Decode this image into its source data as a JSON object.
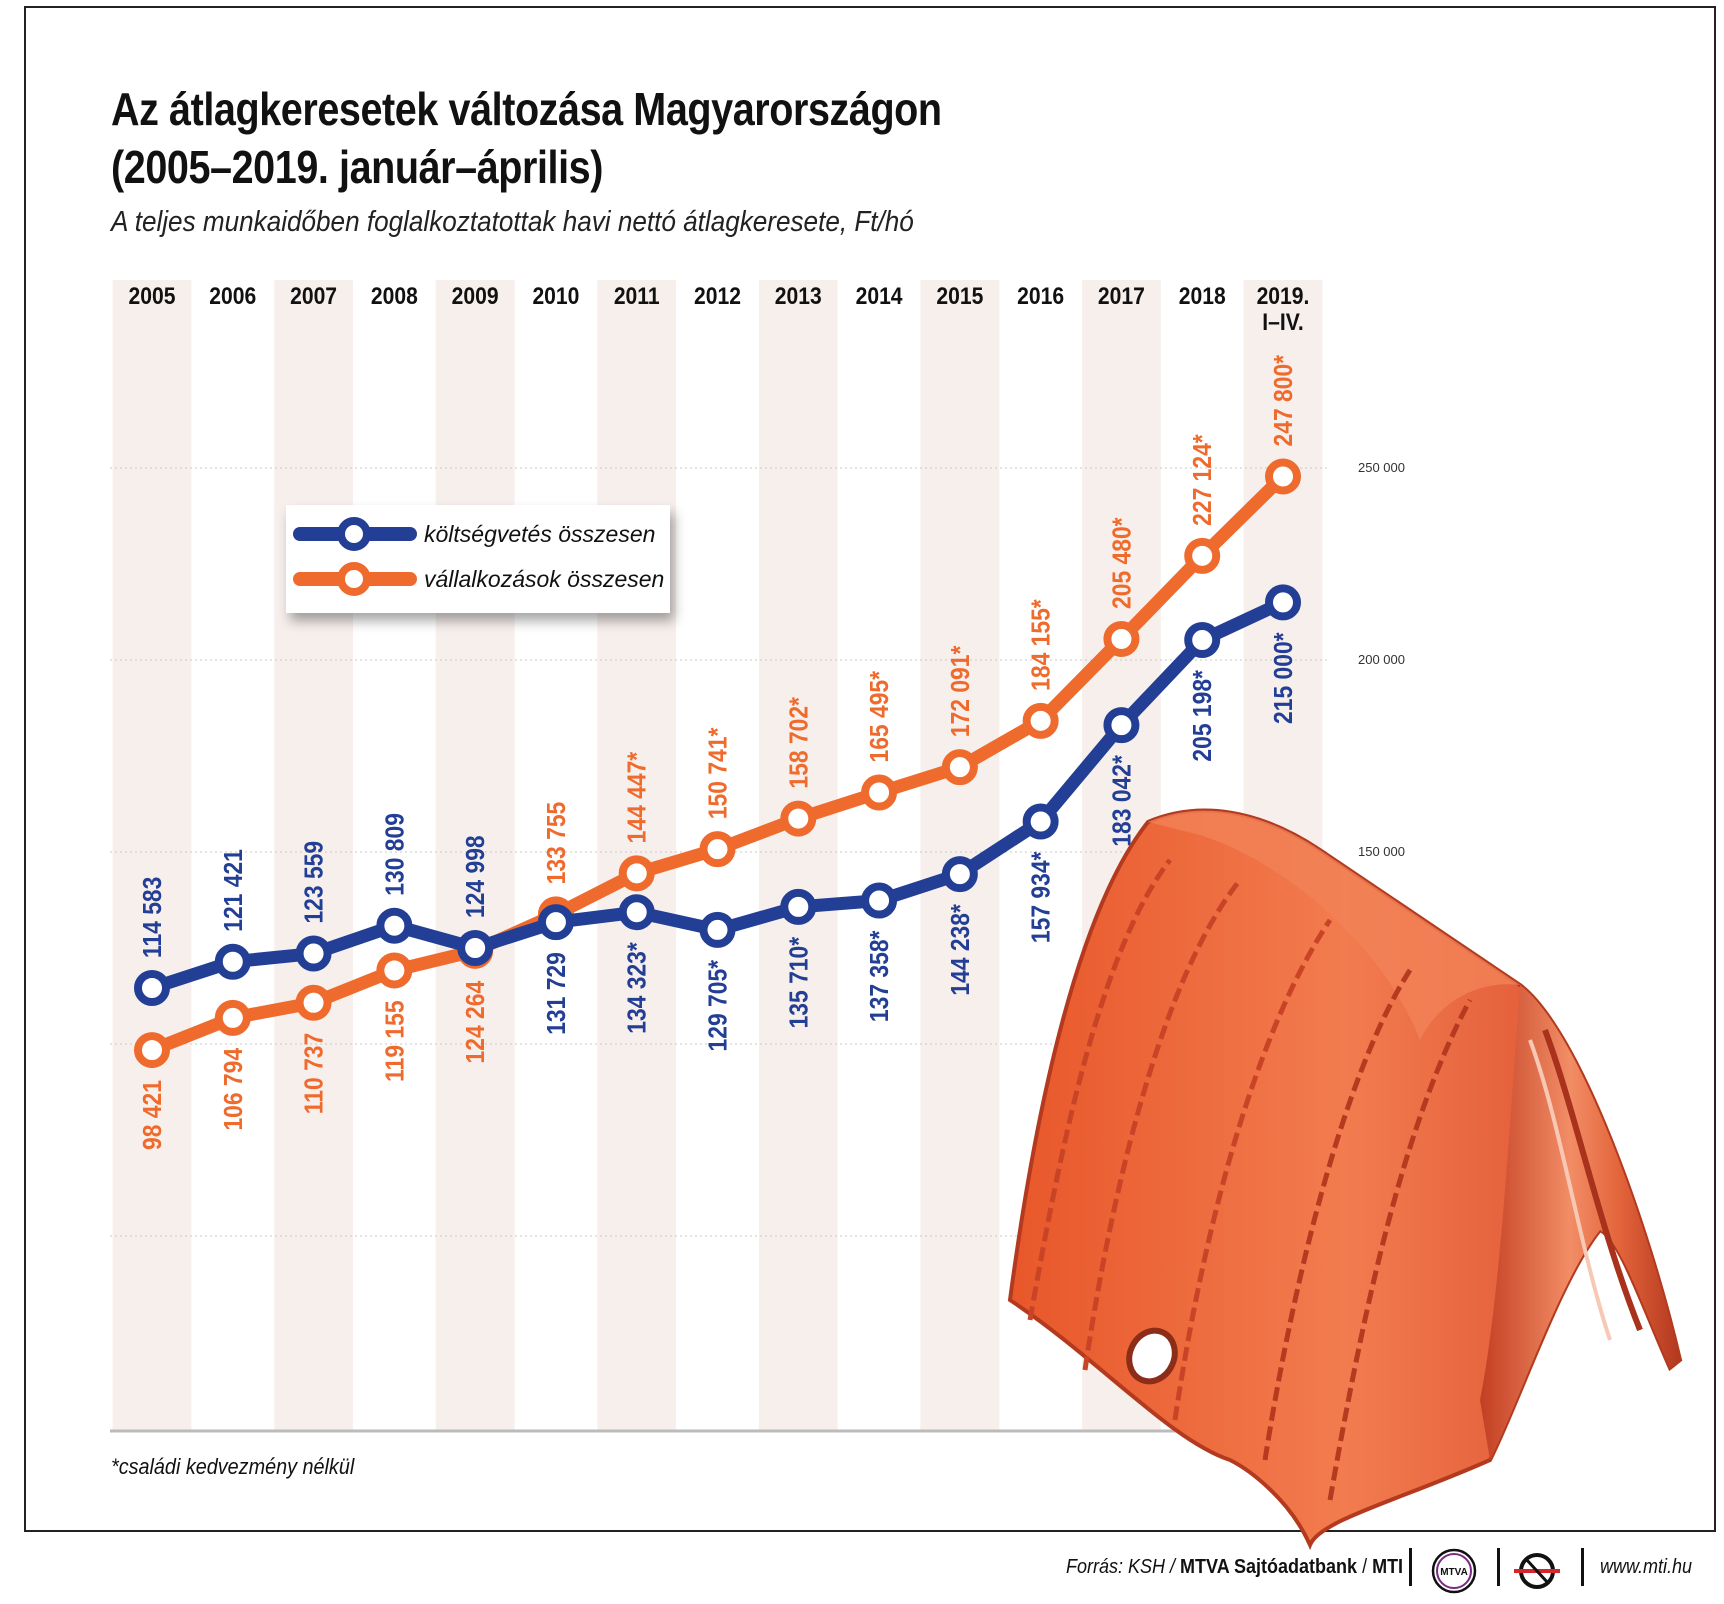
{
  "title_line1": "Az átlagkeresetek változása Magyarországon",
  "title_line2": "(2005–2019. január–április)",
  "subtitle": "A teljes munkaidőben foglalkoztatottak havi nettó átlagkeresete, Ft/hó",
  "footnote": "*családi kedvezmény nélkül",
  "source": {
    "prefix": "Forrás: KSH / ",
    "bold": "MTVA Sajtóadatbank",
    "sep": " / ",
    "bold2": "MTI",
    "website": "www.mti.hu",
    "logo1_text": "MTVA"
  },
  "colors": {
    "blue": "#233e95",
    "orange": "#ef6b2d",
    "band": "#f7efec"
  },
  "chart_data": {
    "type": "line",
    "categories": [
      [
        "2005"
      ],
      [
        "2006"
      ],
      [
        "2007"
      ],
      [
        "2008"
      ],
      [
        "2009"
      ],
      [
        "2010"
      ],
      [
        "2011"
      ],
      [
        "2012"
      ],
      [
        "2013"
      ],
      [
        "2014"
      ],
      [
        "2015"
      ],
      [
        "2016"
      ],
      [
        "2017"
      ],
      [
        "2018"
      ],
      [
        "2019.",
        "I–IV."
      ]
    ],
    "yticks": [
      150000,
      200000,
      250000
    ],
    "ytick_labels": [
      "150 000",
      "200 000",
      "250 000"
    ],
    "ylim": [
      50000,
      300000
    ],
    "grid": true,
    "legend_position": "upper-left",
    "series": [
      {
        "name": "költségvetés összesen",
        "color": "#233e95",
        "values": [
          114583,
          121421,
          123559,
          130809,
          124998,
          131729,
          134323,
          129705,
          135710,
          137358,
          144238,
          157934,
          183042,
          205198,
          215000
        ],
        "labels": [
          "114 583",
          "121 421",
          "123 559",
          "130 809",
          "124 998",
          "131 729",
          "134 323*",
          "129 705*",
          "135 710*",
          "137 358*",
          "144 238*",
          "157 934*",
          "183 042*",
          "205 198*",
          "215 000*"
        ]
      },
      {
        "name": "vállalkozások összesen",
        "color": "#ef6b2d",
        "values": [
          98421,
          106794,
          110737,
          119155,
          124264,
          133755,
          144447,
          150741,
          158702,
          165495,
          172091,
          184155,
          205480,
          227124,
          247800
        ],
        "labels": [
          "98 421",
          "106 794",
          "110 737",
          "119 155",
          "124 264",
          "133 755",
          "144 447*",
          "150 741*",
          "158 702*",
          "165 495*",
          "172 091*",
          "184 155*",
          "205 480*",
          "227 124*",
          "247 800*"
        ]
      }
    ]
  }
}
